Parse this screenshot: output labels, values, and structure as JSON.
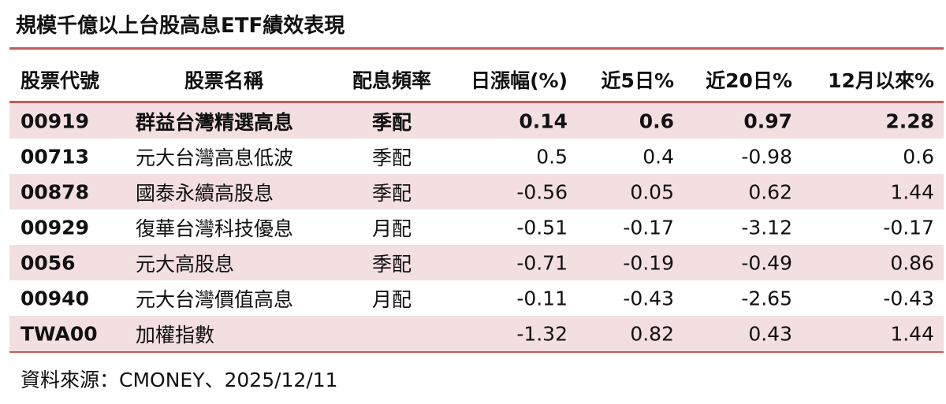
{
  "title": "規模千億以上台股高息ETF績效表現",
  "headers": [
    "股票代號",
    "股票名稱",
    "配息頻率",
    "日漲幅(%)",
    "近5日%",
    "近20日%",
    "12月以來%"
  ],
  "rows": [
    [
      "00919",
      "群益台灣精選高息",
      "季配",
      "0.14",
      "0.6",
      "0.97",
      "2.28"
    ],
    [
      "00713",
      "元大台灣高息低波",
      "季配",
      "0.5",
      "0.4",
      "-0.98",
      "0.6"
    ],
    [
      "00878",
      "國泰永續高股息",
      "季配",
      "-0.56",
      "0.05",
      "0.62",
      "1.44"
    ],
    [
      "00929",
      "復華台灣科技優息",
      "月配",
      "-0.51",
      "-0.17",
      "-3.12",
      "-0.17"
    ],
    [
      "0056",
      "元大高股息",
      "季配",
      "-0.71",
      "-0.19",
      "-0.49",
      "0.86"
    ],
    [
      "00940",
      "元大台灣價值高息",
      "月配",
      "-0.11",
      "-0.43",
      "-2.65",
      "-0.43"
    ],
    [
      "TWA00",
      "加權指數",
      "",
      "-1.32",
      "0.82",
      "0.43",
      "1.44"
    ]
  ],
  "source": "資料來源：CMONEY、2025/12/11",
  "colors": {
    "accent_line": "#c65b58",
    "row_shade": "#f3dfe0"
  }
}
